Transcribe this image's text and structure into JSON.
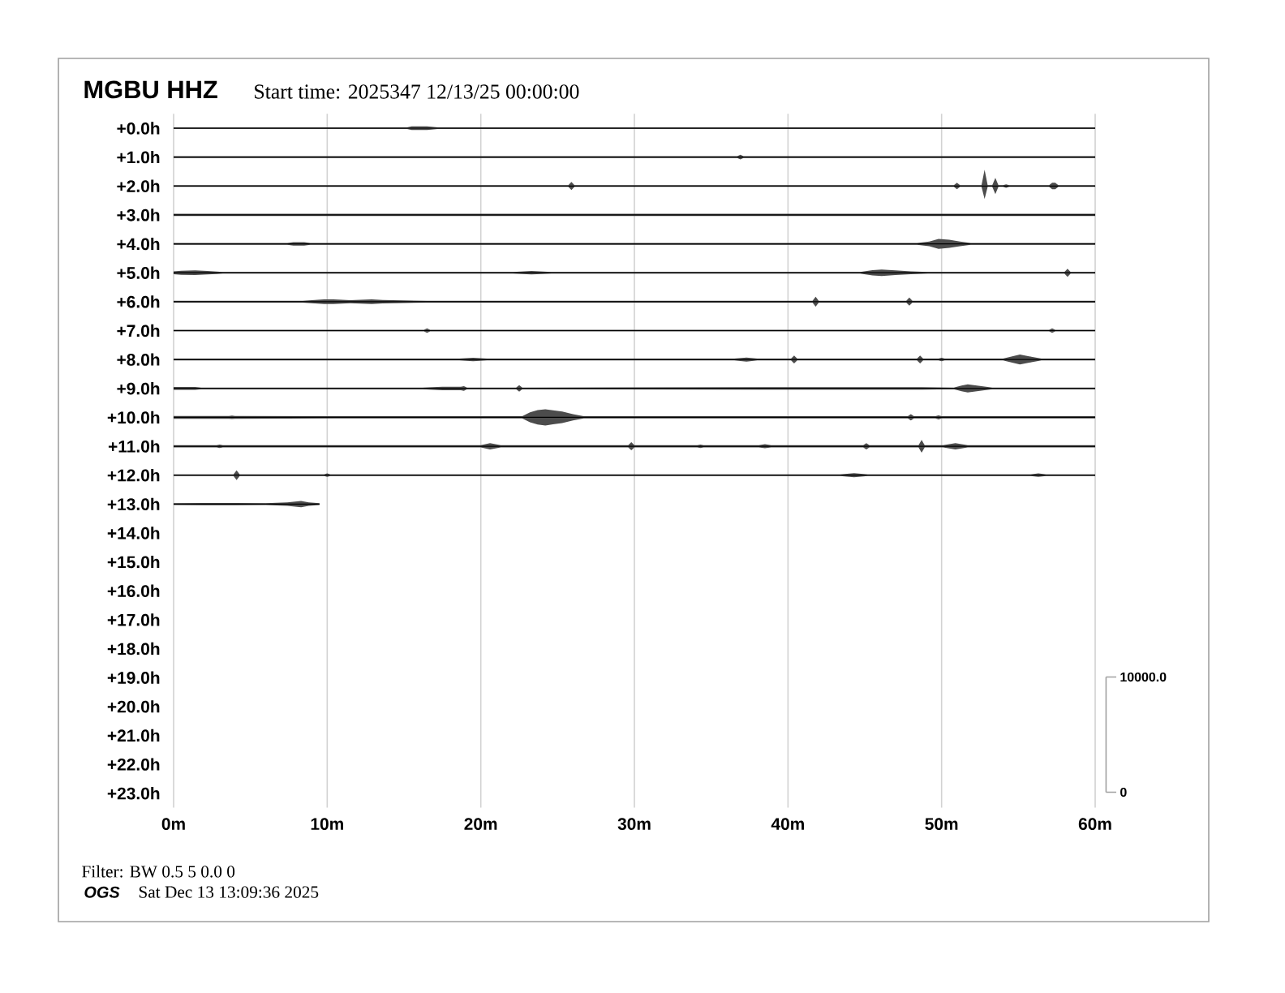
{
  "chart_data": {
    "type": "line",
    "title": "MGBU HHZ",
    "subtitle": "Start time: 2025347 12/13/25 00:00:00",
    "annotations": [
      "Filter: BW 0.5 5 0.0 0",
      "OGS",
      "Sat Dec 13 13:09:36 2025"
    ],
    "xlim": [
      0,
      60
    ],
    "xticks": [
      {
        "value": 0,
        "label": "0m"
      },
      {
        "value": 10,
        "label": "10m"
      },
      {
        "value": 20,
        "label": "20m"
      },
      {
        "value": 30,
        "label": "30m"
      },
      {
        "value": 40,
        "label": "40m"
      },
      {
        "value": 50,
        "label": "50m"
      },
      {
        "value": 60,
        "label": "60m"
      }
    ],
    "ylim": [
      23.5,
      -0.5
    ],
    "yticks": [
      {
        "value": 0,
        "label": "+0.0h"
      },
      {
        "value": 1,
        "label": "+1.0h"
      },
      {
        "value": 2,
        "label": "+2.0h"
      },
      {
        "value": 3,
        "label": "+3.0h"
      },
      {
        "value": 4,
        "label": "+4.0h"
      },
      {
        "value": 5,
        "label": "+5.0h"
      },
      {
        "value": 6,
        "label": "+6.0h"
      },
      {
        "value": 7,
        "label": "+7.0h"
      },
      {
        "value": 8,
        "label": "+8.0h"
      },
      {
        "value": 9,
        "label": "+9.0h"
      },
      {
        "value": 10,
        "label": "+10.0h"
      },
      {
        "value": 11,
        "label": "+11.0h"
      },
      {
        "value": 12,
        "label": "+12.0h"
      },
      {
        "value": 13,
        "label": "+13.0h"
      },
      {
        "value": 14,
        "label": "+14.0h"
      },
      {
        "value": 15,
        "label": "+15.0h"
      },
      {
        "value": 16,
        "label": "+16.0h"
      },
      {
        "value": 17,
        "label": "+17.0h"
      },
      {
        "value": 18,
        "label": "+18.0h"
      },
      {
        "value": 19,
        "label": "+19.0h"
      },
      {
        "value": 20,
        "label": "+20.0h"
      },
      {
        "value": 21,
        "label": "+21.0h"
      },
      {
        "value": 22,
        "label": "+22.0h"
      },
      {
        "value": 23,
        "label": "+23.0h"
      }
    ],
    "y2lim": [
      -1340,
      58900
    ],
    "y2ticks": [
      0,
      {
        "value": 10000,
        "label": "10000.0"
      }
    ],
    "grid": "x",
    "series": [
      {
        "color": "#000000",
        "x": [
          0,
          15.2,
          15.5,
          16.5,
          17.2,
          60
        ],
        "values": [
          0,
          0,
          0,
          0,
          0,
          0
        ],
        "lower": [
          -0.03,
          -0.03,
          -0.06,
          -0.06,
          -0.03,
          -0.03
        ],
        "upper": [
          0.03,
          0.03,
          0.06,
          0.06,
          0.03,
          0.03
        ]
      },
      {
        "color": "#000000",
        "x": [
          0,
          36.7,
          36.9,
          37.1,
          60
        ],
        "values": [
          1,
          1,
          1,
          1,
          1
        ],
        "lower": [
          0.97,
          0.97,
          0.92,
          0.97,
          0.97
        ],
        "upper": [
          1.03,
          1.03,
          1.08,
          1.03,
          1.03
        ]
      },
      {
        "color": "#000000",
        "x": [
          0,
          25.7,
          25.9,
          26.1,
          50.8,
          51.0,
          51.2,
          52.6,
          52.8,
          53.0,
          53.3,
          53.5,
          53.7,
          54.0,
          54.2,
          54.4,
          57.0,
          57.2,
          57.4,
          57.6,
          60
        ],
        "values": [
          2,
          2,
          2,
          2,
          2,
          2,
          2,
          2,
          2,
          2,
          2,
          2,
          2,
          2,
          2,
          2,
          2,
          2,
          2,
          2,
          2
        ],
        "lower": [
          1.97,
          1.97,
          1.86,
          1.97,
          1.97,
          1.89,
          1.97,
          1.97,
          1.44,
          1.97,
          1.97,
          1.72,
          1.97,
          1.97,
          1.94,
          1.97,
          1.97,
          1.89,
          1.89,
          1.97,
          1.97
        ],
        "upper": [
          2.03,
          2.03,
          2.14,
          2.03,
          2.03,
          2.11,
          2.03,
          2.03,
          2.45,
          2.03,
          2.03,
          2.28,
          2.03,
          2.03,
          2.06,
          2.03,
          2.03,
          2.11,
          2.11,
          2.03,
          2.03
        ]
      },
      {
        "color": "#000000",
        "x": [
          0,
          60
        ],
        "values": [
          3,
          3
        ],
        "lower": [
          2.96,
          2.96
        ],
        "upper": [
          3.04,
          3.04
        ]
      },
      {
        "color": "#000000",
        "x": [
          0,
          7.4,
          7.8,
          8.5,
          8.9,
          48.4,
          49.2,
          49.8,
          50.5,
          51.2,
          51.9,
          60
        ],
        "values": [
          4,
          4,
          4,
          4,
          4,
          4,
          4,
          4,
          4,
          4,
          4,
          4
        ],
        "lower": [
          3.97,
          3.97,
          3.94,
          3.94,
          3.97,
          3.97,
          3.92,
          3.83,
          3.86,
          3.92,
          3.97,
          3.97
        ],
        "upper": [
          4.03,
          4.03,
          4.06,
          4.06,
          4.03,
          4.03,
          4.08,
          4.17,
          4.14,
          4.08,
          4.03,
          4.03
        ]
      },
      {
        "color": "#000000",
        "x": [
          0,
          0.5,
          1.4,
          2.2,
          2.8,
          3.2,
          22.1,
          23.3,
          24.6,
          44.7,
          45.5,
          46.1,
          47.0,
          48.0,
          49.1,
          58.0,
          58.2,
          58.4,
          60
        ],
        "values": [
          5,
          5,
          5,
          5,
          5,
          5,
          5,
          5,
          5,
          5,
          5,
          5,
          5,
          5,
          5,
          5,
          5,
          5,
          5
        ],
        "lower": [
          4.95,
          4.93,
          4.92,
          4.94,
          4.96,
          4.97,
          4.97,
          4.94,
          4.97,
          4.97,
          4.91,
          4.89,
          4.92,
          4.95,
          4.97,
          4.97,
          4.86,
          4.97,
          4.97
        ],
        "upper": [
          5.05,
          5.07,
          5.08,
          5.06,
          5.04,
          5.03,
          5.03,
          5.06,
          5.03,
          5.03,
          5.09,
          5.11,
          5.08,
          5.05,
          5.03,
          5.03,
          5.14,
          5.03,
          5.03
        ]
      },
      {
        "color": "#000000",
        "x": [
          0,
          8.4,
          9.8,
          10.4,
          11.5,
          12.9,
          13.6,
          16.5,
          41.6,
          41.8,
          42.0,
          47.7,
          47.9,
          48.1,
          60
        ],
        "values": [
          6,
          6,
          6,
          6,
          6,
          6,
          6,
          6,
          6,
          6,
          6,
          6,
          6,
          6,
          6
        ],
        "lower": [
          5.97,
          5.97,
          5.92,
          5.92,
          5.95,
          5.92,
          5.94,
          5.97,
          5.97,
          5.83,
          5.97,
          5.97,
          5.86,
          5.97,
          5.97
        ],
        "upper": [
          6.03,
          6.03,
          6.08,
          6.08,
          6.05,
          6.08,
          6.06,
          6.03,
          6.03,
          6.17,
          6.03,
          6.03,
          6.14,
          6.03,
          6.03
        ]
      },
      {
        "color": "#000000",
        "x": [
          0,
          16.3,
          16.5,
          16.7,
          57.0,
          57.2,
          57.4,
          60
        ],
        "values": [
          7,
          7,
          7,
          7,
          7,
          7,
          7,
          7
        ],
        "lower": [
          6.97,
          6.97,
          6.92,
          6.97,
          6.97,
          6.92,
          6.97,
          6.97
        ],
        "upper": [
          7.03,
          7.03,
          7.08,
          7.03,
          7.03,
          7.08,
          7.03,
          7.03
        ]
      },
      {
        "color": "#000000",
        "x": [
          0,
          18.6,
          19.5,
          20.4,
          36.5,
          37.3,
          38.0,
          40.2,
          40.4,
          40.6,
          48.4,
          48.6,
          48.8,
          49.8,
          50.0,
          50.2,
          54.0,
          54.6,
          55.1,
          55.7,
          56.5,
          60
        ],
        "values": [
          8,
          8,
          8,
          8,
          8,
          8,
          8,
          8,
          8,
          8,
          8,
          8,
          8,
          8,
          8,
          8,
          8,
          8,
          8,
          8,
          8,
          8
        ],
        "lower": [
          7.97,
          7.97,
          7.94,
          7.97,
          7.97,
          7.93,
          7.97,
          7.97,
          7.86,
          7.97,
          7.97,
          7.86,
          7.97,
          7.97,
          7.94,
          7.97,
          7.97,
          7.89,
          7.83,
          7.89,
          7.97,
          7.97
        ],
        "upper": [
          8.03,
          8.03,
          8.06,
          8.03,
          8.03,
          8.07,
          8.03,
          8.03,
          8.14,
          8.03,
          8.03,
          8.14,
          8.03,
          8.03,
          8.06,
          8.03,
          8.03,
          8.11,
          8.17,
          8.11,
          8.03,
          8.03
        ]
      },
      {
        "color": "#000000",
        "x": [
          0,
          1.4,
          1.8,
          16.2,
          17.5,
          18.7,
          18.9,
          19.1,
          22.3,
          22.5,
          22.7,
          38.5,
          48.7,
          50.8,
          51.3,
          51.7,
          52.4,
          53.3,
          60
        ],
        "values": [
          9,
          9,
          9,
          9,
          9,
          9,
          9,
          9,
          9,
          9,
          9,
          9,
          9,
          9,
          9,
          9,
          9,
          9,
          9
        ],
        "lower": [
          8.95,
          8.95,
          8.97,
          8.97,
          8.94,
          8.94,
          8.92,
          8.97,
          8.97,
          8.89,
          8.97,
          8.96,
          8.96,
          8.97,
          8.9,
          8.86,
          8.91,
          8.97,
          8.97
        ],
        "upper": [
          9.05,
          9.05,
          9.03,
          9.03,
          9.06,
          9.06,
          9.08,
          9.03,
          9.03,
          9.11,
          9.03,
          9.04,
          9.04,
          9.03,
          9.1,
          9.14,
          9.09,
          9.03,
          9.03
        ]
      },
      {
        "color": "#000000",
        "x": [
          0,
          3.6,
          3.8,
          4.0,
          10.5,
          22.7,
          23.2,
          23.7,
          24.2,
          24.7,
          25.3,
          26.0,
          26.7,
          47.8,
          48.0,
          48.2,
          49.6,
          49.8,
          50.0,
          60
        ],
        "values": [
          10,
          10,
          10,
          10,
          10,
          10,
          10,
          10,
          10,
          10,
          10,
          10,
          10,
          10,
          10,
          10,
          10,
          10,
          10,
          10
        ],
        "lower": [
          9.95,
          9.95,
          9.94,
          9.95,
          9.96,
          9.96,
          9.83,
          9.75,
          9.72,
          9.76,
          9.8,
          9.89,
          9.96,
          9.96,
          9.89,
          9.96,
          9.96,
          9.93,
          9.96,
          9.96
        ],
        "upper": [
          10.05,
          10.05,
          10.06,
          10.05,
          10.04,
          10.04,
          10.17,
          10.25,
          10.28,
          10.24,
          10.2,
          10.11,
          10.04,
          10.04,
          10.11,
          10.04,
          10.04,
          10.07,
          10.04,
          10.04
        ]
      },
      {
        "color": "#000000",
        "x": [
          0,
          2.8,
          3.0,
          3.2,
          20.0,
          20.6,
          21.3,
          29.6,
          29.8,
          30.0,
          34.1,
          34.3,
          34.5,
          38.1,
          38.5,
          38.9,
          44.9,
          45.1,
          45.3,
          48.5,
          48.7,
          48.9,
          50.1,
          50.9,
          51.7,
          60
        ],
        "values": [
          11,
          11,
          11,
          11,
          11,
          11,
          11,
          11,
          11,
          11,
          11,
          11,
          11,
          11,
          11,
          11,
          11,
          11,
          11,
          11,
          11,
          11,
          11,
          11,
          11,
          11
        ],
        "lower": [
          10.96,
          10.96,
          10.94,
          10.96,
          10.96,
          10.89,
          10.96,
          10.96,
          10.86,
          10.96,
          10.96,
          10.94,
          10.96,
          10.96,
          10.93,
          10.96,
          10.96,
          10.89,
          10.96,
          10.96,
          10.78,
          10.96,
          10.96,
          10.89,
          10.96,
          10.96
        ],
        "upper": [
          11.04,
          11.04,
          11.06,
          11.04,
          11.04,
          11.11,
          11.04,
          11.04,
          11.14,
          11.04,
          11.04,
          11.06,
          11.04,
          11.04,
          11.07,
          11.04,
          11.04,
          11.11,
          11.04,
          11.04,
          11.22,
          11.04,
          11.04,
          11.11,
          11.04,
          11.04
        ]
      },
      {
        "color": "#000000",
        "x": [
          0,
          3.9,
          4.1,
          4.3,
          9.8,
          10.0,
          10.2,
          43.4,
          44.3,
          45.2,
          55.8,
          56.3,
          56.8,
          60
        ],
        "values": [
          12,
          12,
          12,
          12,
          12,
          12,
          12,
          12,
          12,
          12,
          12,
          12,
          12,
          12
        ],
        "lower": [
          11.97,
          11.97,
          11.83,
          11.97,
          11.97,
          11.94,
          11.97,
          11.97,
          11.93,
          11.97,
          11.97,
          11.94,
          11.97,
          11.97
        ],
        "upper": [
          12.03,
          12.03,
          12.17,
          12.03,
          12.03,
          12.06,
          12.03,
          12.03,
          12.07,
          12.03,
          12.03,
          12.06,
          12.03,
          12.03
        ]
      },
      {
        "color": "#000000",
        "x": [
          0,
          2.0,
          4.0,
          6.0,
          7.4,
          8.3,
          8.8,
          9.5
        ],
        "values": [
          13,
          13,
          13,
          13,
          13,
          13,
          13,
          13
        ],
        "lower": [
          12.97,
          12.96,
          12.96,
          12.97,
          12.94,
          12.89,
          12.94,
          12.97
        ],
        "upper": [
          13.03,
          13.04,
          13.04,
          13.03,
          13.06,
          13.11,
          13.06,
          13.03
        ]
      }
    ]
  }
}
